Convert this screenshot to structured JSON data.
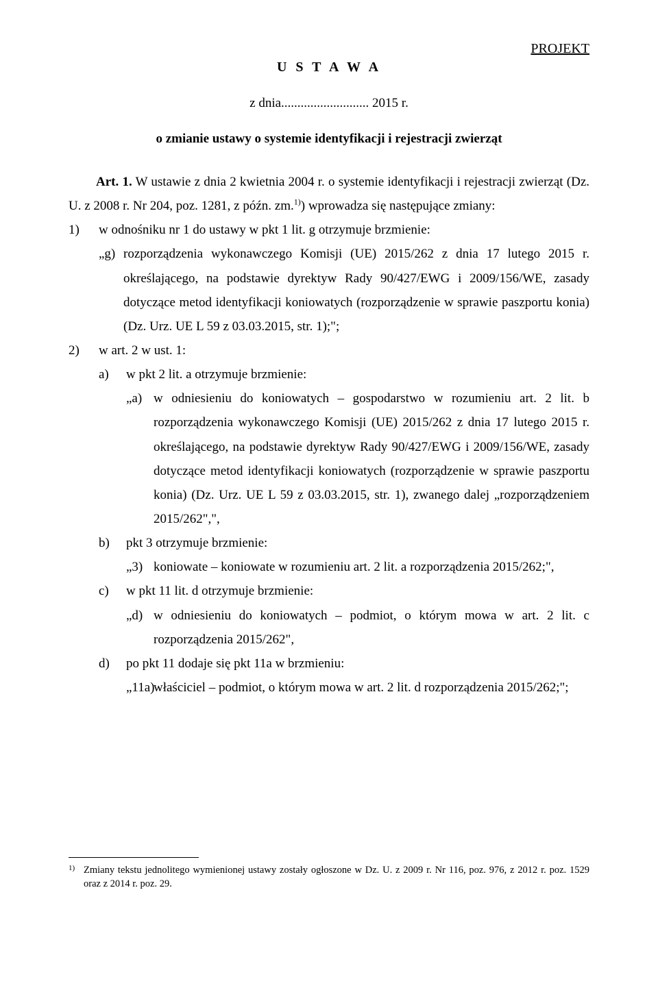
{
  "header": {
    "projekt": "PROJEKT",
    "title": "U S T A W A",
    "date": "z dnia........................... 2015 r.",
    "subject": "o zmianie ustawy o systemie identyfikacji i rejestracji zwierząt"
  },
  "art1": {
    "intro_label": "Art. 1.",
    "intro_text": " W ustawie z dnia 2 kwietnia 2004 r. o systemie identyfikacji i rejestracji zwierząt (Dz. U. z 2008 r. Nr 204, poz. 1281, z późn. zm.",
    "intro_after_fn": ") wprowadza się następujące zmiany:",
    "item1": {
      "marker": "1)",
      "lead": "w odnośniku nr 1 do ustawy w pkt 1 lit. g otrzymuje brzmienie:",
      "quote_marker": "„g)",
      "quote_text": "rozporządzenia wykonawczego Komisji (UE) 2015/262 z dnia 17 lutego 2015 r. określającego, na podstawie dyrektyw Rady 90/427/EWG i 2009/156/WE, zasady dotyczące metod identyfikacji koniowatych (rozporządzenie w sprawie paszportu konia) (Dz. Urz. UE L 59 z 03.03.2015, str. 1);\";"
    },
    "item2": {
      "marker": "2)",
      "lead": "w art. 2 w ust. 1:",
      "a": {
        "marker": "a)",
        "lead": "w pkt 2 lit. a otrzymuje brzmienie:",
        "quote_marker": "„a)",
        "quote_text": "w odniesieniu do koniowatych – gospodarstwo w rozumieniu art. 2 lit. b rozporządzenia wykonawczego Komisji (UE) 2015/262 z dnia 17 lutego 2015 r. określającego, na podstawie dyrektyw Rady 90/427/EWG i 2009/156/WE, zasady dotyczące metod identyfikacji koniowatych (rozporządzenie w sprawie paszportu konia) (Dz. Urz. UE L 59 z 03.03.2015, str. 1), zwanego dalej „rozporządzeniem 2015/262\",\","
      },
      "b": {
        "marker": "b)",
        "lead": "pkt 3 otrzymuje brzmienie:",
        "quote_marker": "„3)",
        "quote_text": "koniowate – koniowate w rozumieniu art. 2 lit. a rozporządzenia 2015/262;\","
      },
      "c": {
        "marker": "c)",
        "lead": "w pkt 11 lit. d otrzymuje brzmienie:",
        "quote_marker": "„d)",
        "quote_text": "w odniesieniu do koniowatych – podmiot, o którym mowa w art. 2 lit. c rozporządzenia 2015/262\","
      },
      "d": {
        "marker": "d)",
        "lead": "po pkt 11 dodaje się pkt 11a w brzmieniu:",
        "quote_marker": "„11a)",
        "quote_text": "właściciel – podmiot, o którym mowa w art. 2 lit. d rozporządzenia 2015/262;\";"
      }
    }
  },
  "footnote": {
    "marker": "1)",
    "text": "Zmiany tekstu jednolitego wymienionej ustawy zostały ogłoszone w Dz. U. z 2009 r. Nr 116, poz. 976, z 2012 r. poz. 1529 oraz z 2014 r. poz. 29."
  }
}
